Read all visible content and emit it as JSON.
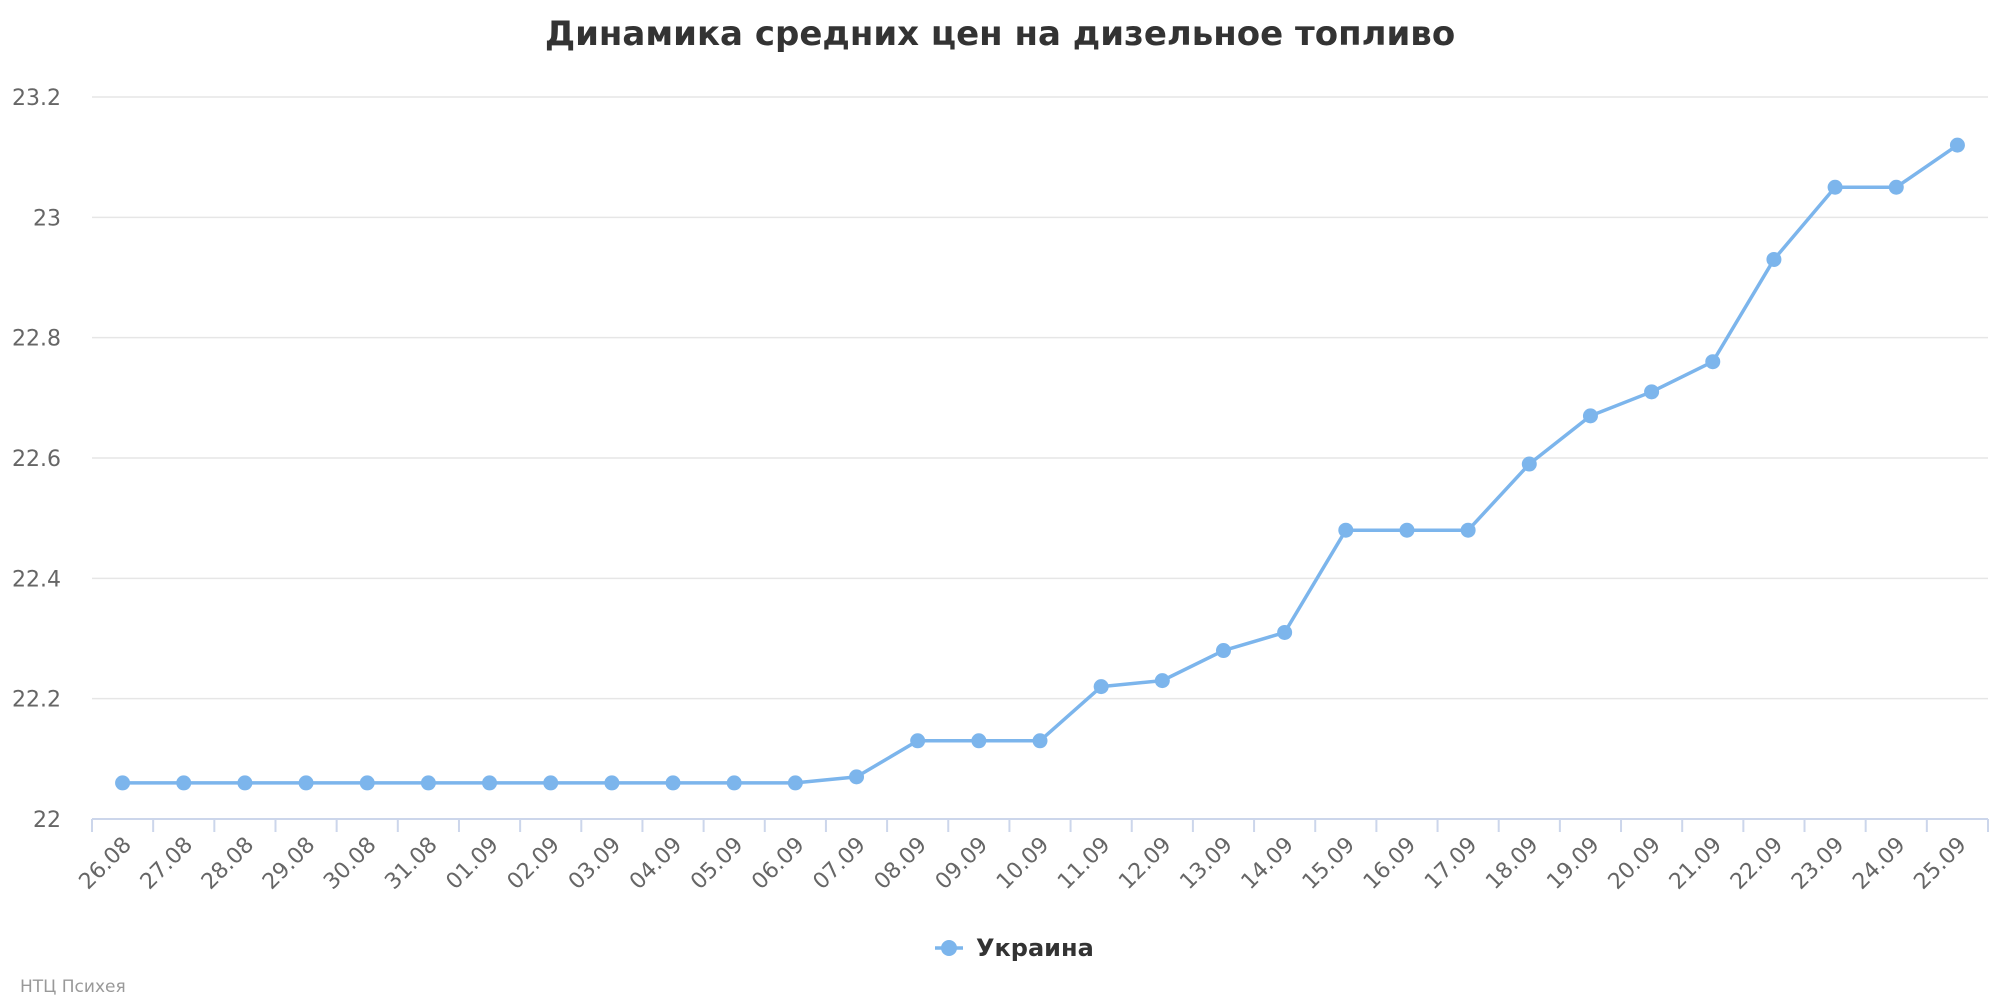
{
  "colors": {
    "series": "#7cb5ec",
    "grid": "#e6e6e6",
    "axis": "#ccd6eb",
    "title": "#333333",
    "tick_label": "#666666",
    "credits": "#999999"
  },
  "credits": "НТЦ Психея",
  "chart_data": {
    "type": "line",
    "title": "Динамика средних цен на дизельное топливо",
    "xlabel": "",
    "ylabel": "",
    "ylim": [
      22,
      23.2
    ],
    "yticks": [
      "22",
      "22.2",
      "22.4",
      "22.6",
      "22.8",
      "23",
      "23.2"
    ],
    "grid": true,
    "legend": "bottom-center",
    "categories": [
      "26.08",
      "27.08",
      "28.08",
      "29.08",
      "30.08",
      "31.08",
      "01.09",
      "02.09",
      "03.09",
      "04.09",
      "05.09",
      "06.09",
      "07.09",
      "08.09",
      "09.09",
      "10.09",
      "11.09",
      "12.09",
      "13.09",
      "14.09",
      "15.09",
      "16.09",
      "17.09",
      "18.09",
      "19.09",
      "20.09",
      "21.09",
      "22.09",
      "23.09",
      "24.09",
      "25.09"
    ],
    "series": [
      {
        "name": "Украина",
        "values": [
          22.06,
          22.06,
          22.06,
          22.06,
          22.06,
          22.06,
          22.06,
          22.06,
          22.06,
          22.06,
          22.06,
          22.06,
          22.07,
          22.13,
          22.13,
          22.13,
          22.22,
          22.23,
          22.28,
          22.31,
          22.48,
          22.48,
          22.48,
          22.59,
          22.67,
          22.71,
          22.76,
          22.93,
          23.05,
          23.05,
          23.12
        ]
      }
    ]
  }
}
